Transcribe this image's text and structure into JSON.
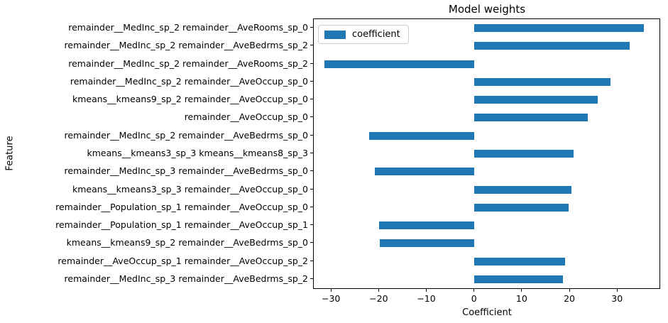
{
  "chart_data": {
    "type": "bar",
    "orientation": "horizontal",
    "title": "Model weights",
    "xlabel": "Coefficient",
    "ylabel": "Feature",
    "legend": {
      "label": "coefficient",
      "position": "upper left"
    },
    "bar_color": "#1f77b4",
    "grid": false,
    "xlim": [
      -33.6,
      38.9
    ],
    "xticks": [
      -30,
      -20,
      -10,
      0,
      10,
      20,
      30
    ],
    "xtick_labels": [
      "−30",
      "−20",
      "−10",
      "0",
      "10",
      "20",
      "30"
    ],
    "categories_order": "top-to-bottom",
    "categories": [
      "remainder__MedInc_sp_2 remainder__AveRooms_sp_0",
      "remainder__MedInc_sp_2 remainder__AveBedrms_sp_2",
      "remainder__MedInc_sp_2 remainder__AveRooms_sp_2",
      "remainder__MedInc_sp_2 remainder__AveOccup_sp_0",
      "kmeans__kmeans9_sp_2 remainder__AveOccup_sp_0",
      "remainder__AveOccup_sp_0",
      "remainder__MedInc_sp_2 remainder__AveBedrms_sp_0",
      "kmeans__kmeans3_sp_3 kmeans__kmeans8_sp_3",
      "remainder__MedInc_sp_3 remainder__AveBedrms_sp_0",
      "kmeans__kmeans3_sp_3 remainder__AveOccup_sp_0",
      "remainder__Population_sp_1 remainder__AveOccup_sp_0",
      "remainder__Population_sp_1 remainder__AveOccup_sp_1",
      "kmeans__kmeans9_sp_2 remainder__AveBedrms_sp_0",
      "remainder__AveOccup_sp_1 remainder__AveOccup_sp_2",
      "remainder__MedInc_sp_3 remainder__AveBedrms_sp_2"
    ],
    "values": [
      35.6,
      32.6,
      -31.3,
      28.6,
      26.0,
      23.9,
      -22.0,
      20.9,
      -20.8,
      20.5,
      19.9,
      -19.9,
      -19.8,
      19.1,
      18.7
    ]
  }
}
